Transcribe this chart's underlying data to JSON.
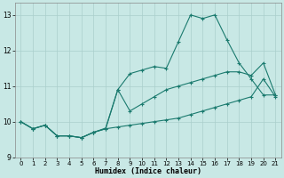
{
  "xlabel": "Humidex (Indice chaleur)",
  "xlim": [
    -0.5,
    21.5
  ],
  "ylim": [
    9.0,
    13.35
  ],
  "yticks": [
    9,
    10,
    11,
    12,
    13
  ],
  "xticks": [
    0,
    1,
    2,
    3,
    4,
    5,
    6,
    7,
    8,
    9,
    10,
    11,
    12,
    13,
    14,
    15,
    16,
    17,
    18,
    19,
    20,
    21
  ],
  "bg_color": "#c8e8e5",
  "grid_color": "#aacfcc",
  "line_color": "#1a7a6e",
  "lines": [
    {
      "x": [
        0,
        1,
        2,
        3,
        4,
        5,
        6,
        7,
        8,
        9,
        10,
        11,
        12,
        13,
        14,
        15,
        16,
        17,
        18,
        19,
        20,
        21
      ],
      "y": [
        10.0,
        9.8,
        9.9,
        9.6,
        9.6,
        9.55,
        9.7,
        9.8,
        9.85,
        9.9,
        9.95,
        10.0,
        10.05,
        10.1,
        10.2,
        10.3,
        10.4,
        10.5,
        10.6,
        10.7,
        11.2,
        10.7
      ]
    },
    {
      "x": [
        0,
        1,
        2,
        3,
        4,
        5,
        6,
        7,
        8,
        9,
        10,
        11,
        12,
        13,
        14,
        15,
        16,
        17,
        18,
        19,
        20,
        21
      ],
      "y": [
        10.0,
        9.8,
        9.9,
        9.6,
        9.6,
        9.55,
        9.7,
        9.82,
        10.9,
        10.3,
        10.5,
        10.7,
        10.9,
        11.0,
        11.1,
        11.2,
        11.3,
        11.4,
        11.4,
        11.3,
        11.65,
        10.75
      ]
    },
    {
      "x": [
        0,
        1,
        2,
        3,
        4,
        5,
        6,
        7,
        8,
        9,
        10,
        11,
        12,
        13,
        14,
        15,
        16,
        17,
        18,
        19,
        20,
        21
      ],
      "y": [
        10.0,
        9.8,
        9.9,
        9.6,
        9.6,
        9.55,
        9.7,
        9.8,
        10.9,
        11.35,
        11.45,
        11.55,
        11.5,
        12.25,
        13.0,
        12.9,
        13.0,
        12.3,
        11.65,
        11.2,
        10.75,
        10.75
      ]
    }
  ]
}
